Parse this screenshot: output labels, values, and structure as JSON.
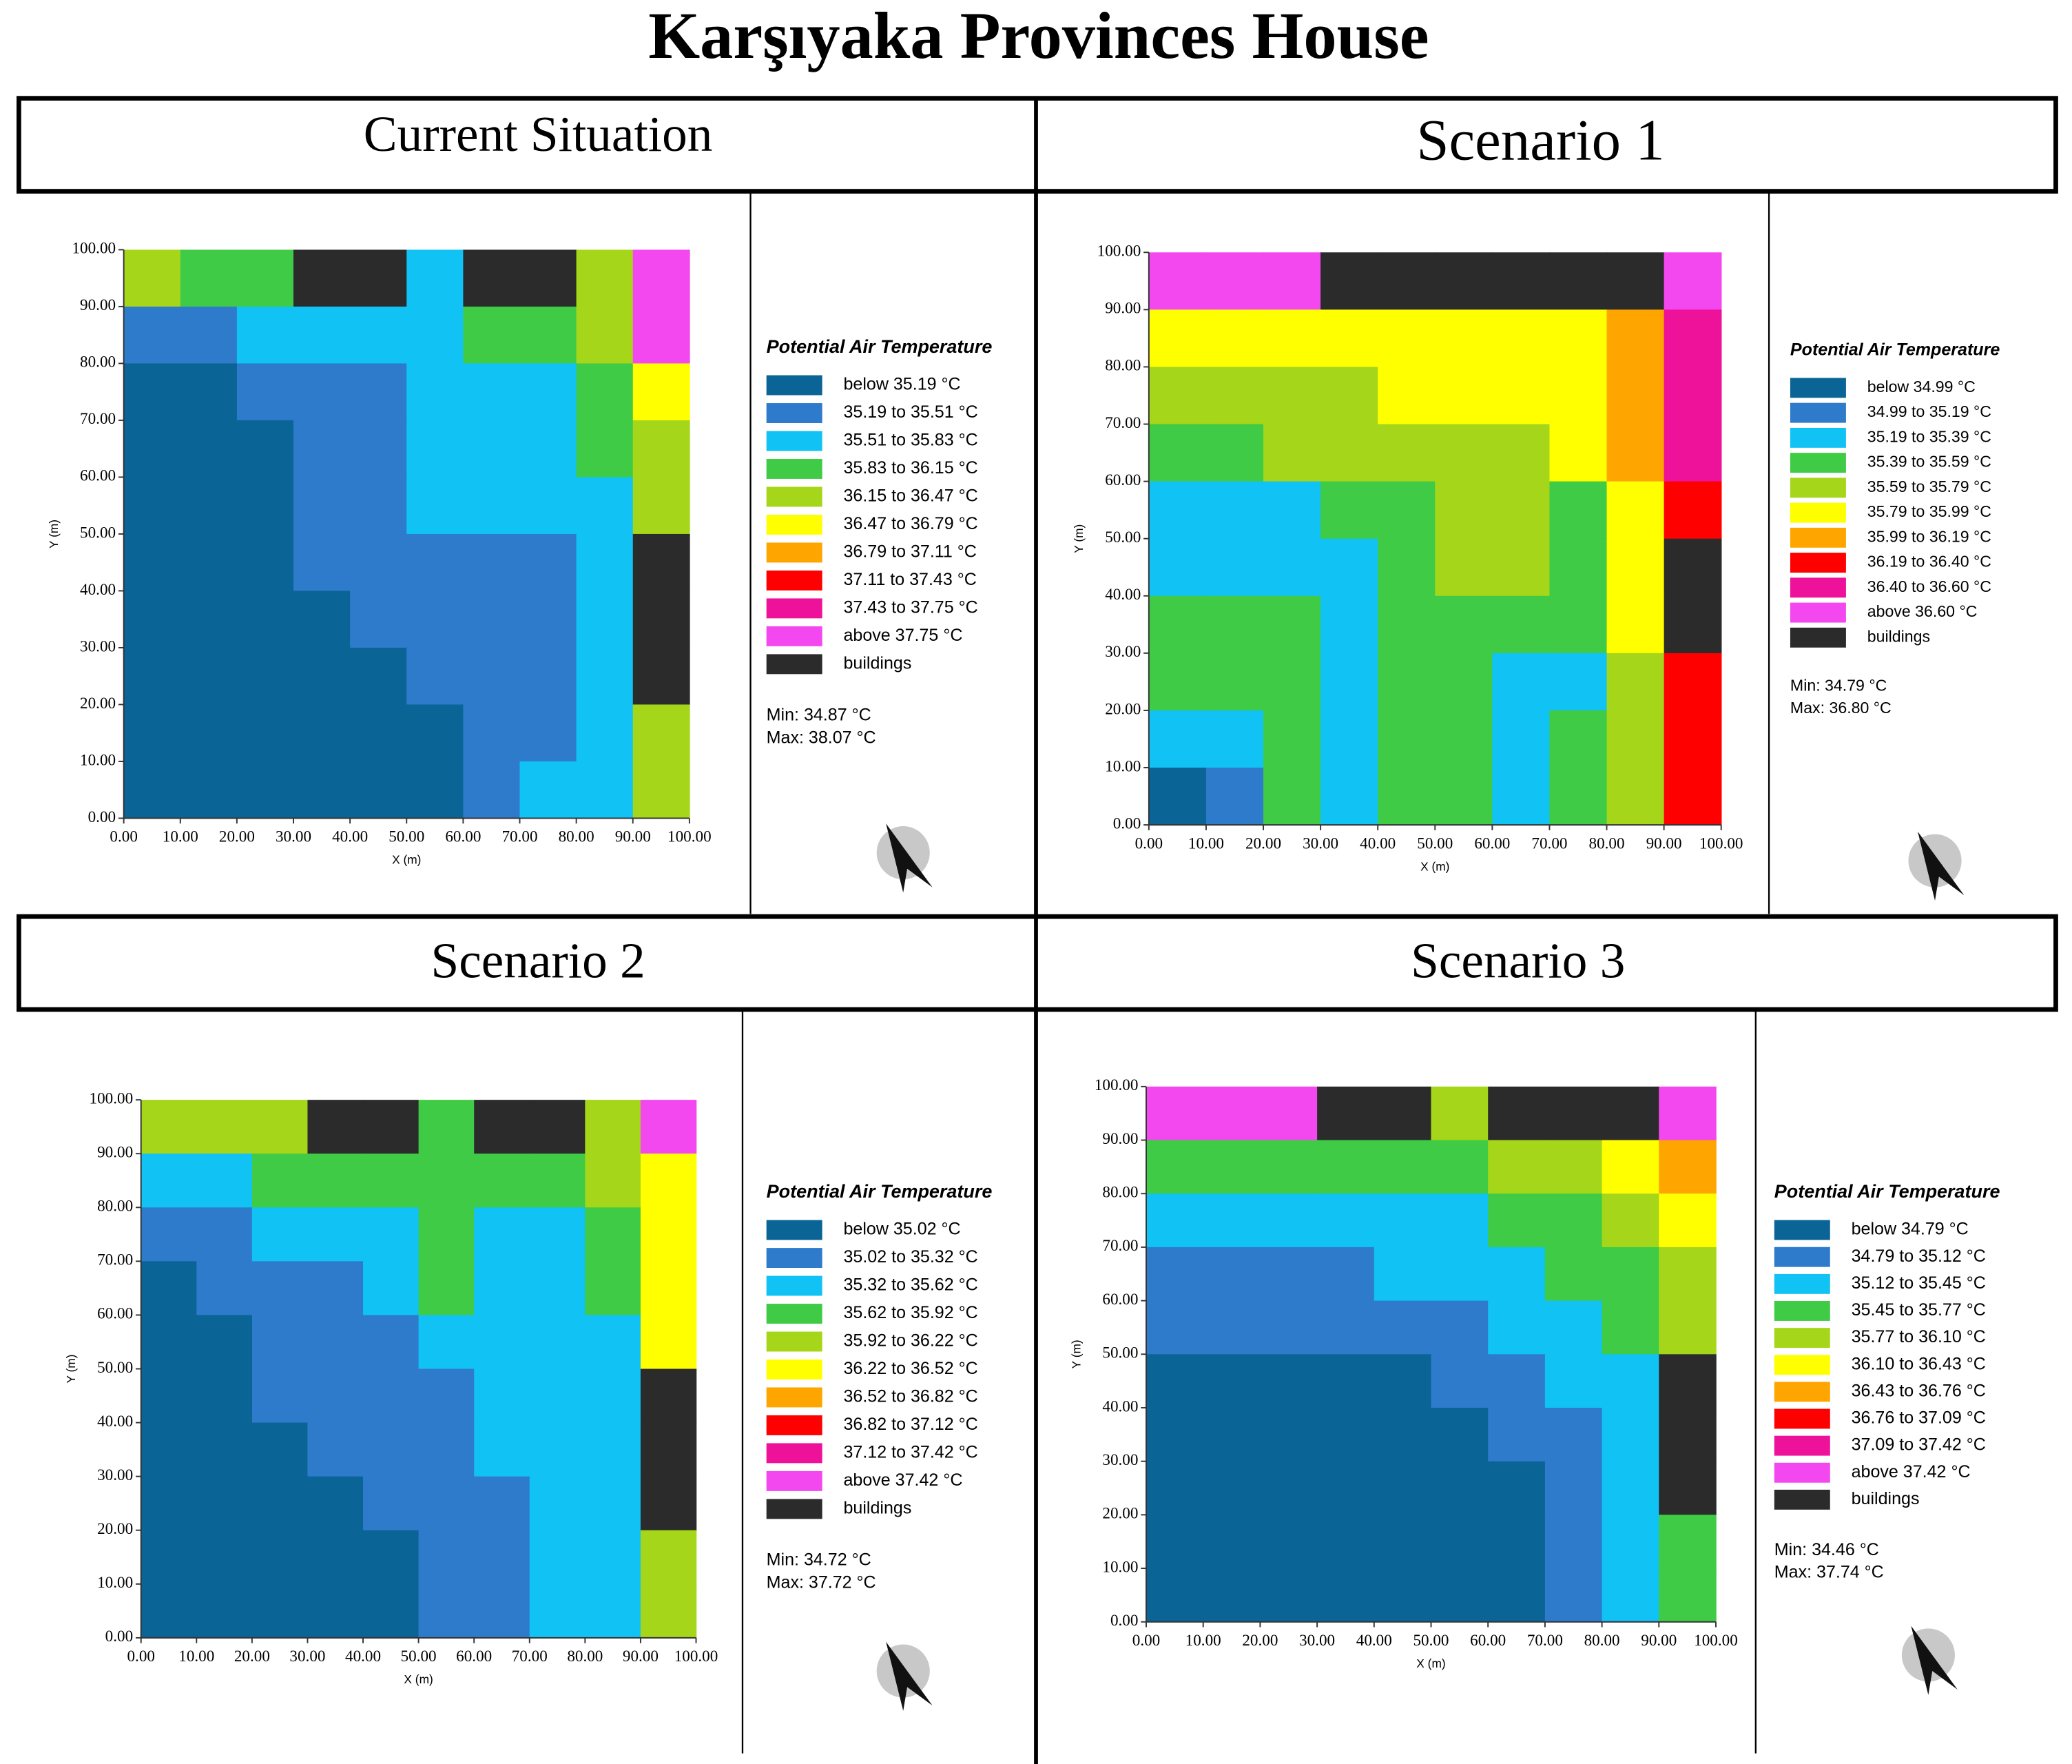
{
  "title": "Karşıyaka Provinces House",
  "chart_data": [
    {
      "type": "heatmap",
      "title": "Current Situation",
      "legend_title": "Potential Air Temperature",
      "xlabel": "X (m)",
      "ylabel": "Y (m)",
      "xlim": [
        0,
        100
      ],
      "ylim": [
        0,
        100
      ],
      "xticks": [
        {
          "value": 0,
          "label": "0.00"
        },
        {
          "value": 10,
          "label": "10.00"
        },
        {
          "value": 20,
          "label": "20.00"
        },
        {
          "value": 30,
          "label": "30.00"
        },
        {
          "value": 40,
          "label": "40.00"
        },
        {
          "value": 50,
          "label": "50.00"
        },
        {
          "value": 60,
          "label": "60.00"
        },
        {
          "value": 70,
          "label": "70.00"
        },
        {
          "value": 80,
          "label": "80.00"
        },
        {
          "value": 90,
          "label": "90.00"
        },
        {
          "value": 100,
          "label": "100.00"
        }
      ],
      "yticks": [
        {
          "value": 0,
          "label": "0.00"
        },
        {
          "value": 10,
          "label": "10.00"
        },
        {
          "value": 20,
          "label": "20.00"
        },
        {
          "value": 30,
          "label": "30.00"
        },
        {
          "value": 40,
          "label": "40.00"
        },
        {
          "value": 50,
          "label": "50.00"
        },
        {
          "value": 60,
          "label": "60.00"
        },
        {
          "value": 70,
          "label": "70.00"
        },
        {
          "value": 80,
          "label": "80.00"
        },
        {
          "value": 90,
          "label": "90.00"
        },
        {
          "value": 100,
          "label": "100.00"
        }
      ],
      "legend": [
        {
          "label": "below 35.19 °C",
          "color": "#0a6496"
        },
        {
          "label": "35.19 to 35.51 °C",
          "color": "#2e7bcc"
        },
        {
          "label": "35.51 to 35.83 °C",
          "color": "#11c2f5"
        },
        {
          "label": "35.83 to 36.15 °C",
          "color": "#3fcb45"
        },
        {
          "label": "36.15 to 36.47 °C",
          "color": "#a6d61a"
        },
        {
          "label": "36.47 to 36.79 °C",
          "color": "#ffff00"
        },
        {
          "label": "36.79 to 37.11 °C",
          "color": "#ffa500"
        },
        {
          "label": "37.11 to 37.43 °C",
          "color": "#ff0000"
        },
        {
          "label": "37.43 to 37.75 °C",
          "color": "#ee1199"
        },
        {
          "label": "above 37.75 °C",
          "color": "#f347f0"
        },
        {
          "label": "buildings",
          "color": "#2b2b2b"
        }
      ],
      "min_label": "Min: 34.87 °C",
      "max_label": "Max: 38.07 °C",
      "values": [
        [
          4,
          3,
          3,
          10,
          10,
          2,
          10,
          10,
          4,
          9
        ],
        [
          1,
          1,
          2,
          2,
          2,
          2,
          3,
          3,
          4,
          9
        ],
        [
          0,
          0,
          1,
          1,
          1,
          2,
          2,
          2,
          3,
          5
        ],
        [
          0,
          0,
          0,
          1,
          1,
          2,
          2,
          2,
          3,
          4
        ],
        [
          0,
          0,
          0,
          1,
          1,
          2,
          2,
          2,
          2,
          4
        ],
        [
          0,
          0,
          0,
          1,
          1,
          1,
          1,
          1,
          2,
          10
        ],
        [
          0,
          0,
          0,
          0,
          1,
          1,
          1,
          1,
          2,
          10
        ],
        [
          0,
          0,
          0,
          0,
          0,
          1,
          1,
          1,
          2,
          10
        ],
        [
          0,
          0,
          0,
          0,
          0,
          0,
          1,
          1,
          2,
          4
        ],
        [
          0,
          0,
          0,
          0,
          0,
          0,
          1,
          2,
          2,
          4
        ]
      ]
    },
    {
      "type": "heatmap",
      "title": "Scenario 1",
      "legend_title": "Potential Air Temperature",
      "xlabel": "X (m)",
      "ylabel": "Y (m)",
      "xlim": [
        0,
        100
      ],
      "ylim": [
        0,
        100
      ],
      "xticks": [
        {
          "value": 0,
          "label": "0.00"
        },
        {
          "value": 10,
          "label": "10.00"
        },
        {
          "value": 20,
          "label": "20.00"
        },
        {
          "value": 30,
          "label": "30.00"
        },
        {
          "value": 40,
          "label": "40.00"
        },
        {
          "value": 50,
          "label": "50.00"
        },
        {
          "value": 60,
          "label": "60.00"
        },
        {
          "value": 70,
          "label": "70.00"
        },
        {
          "value": 80,
          "label": "80.00"
        },
        {
          "value": 90,
          "label": "90.00"
        },
        {
          "value": 100,
          "label": "100.00"
        }
      ],
      "yticks": [
        {
          "value": 0,
          "label": "0.00"
        },
        {
          "value": 10,
          "label": "10.00"
        },
        {
          "value": 20,
          "label": "20.00"
        },
        {
          "value": 30,
          "label": "30.00"
        },
        {
          "value": 40,
          "label": "40.00"
        },
        {
          "value": 50,
          "label": "50.00"
        },
        {
          "value": 60,
          "label": "60.00"
        },
        {
          "value": 70,
          "label": "70.00"
        },
        {
          "value": 80,
          "label": "80.00"
        },
        {
          "value": 90,
          "label": "90.00"
        },
        {
          "value": 100,
          "label": "100.00"
        }
      ],
      "legend": [
        {
          "label": "below 34.99 °C",
          "color": "#0a6496"
        },
        {
          "label": "34.99 to 35.19 °C",
          "color": "#2e7bcc"
        },
        {
          "label": "35.19 to 35.39 °C",
          "color": "#11c2f5"
        },
        {
          "label": "35.39 to 35.59 °C",
          "color": "#3fcb45"
        },
        {
          "label": "35.59 to 35.79 °C",
          "color": "#a6d61a"
        },
        {
          "label": "35.79 to 35.99 °C",
          "color": "#ffff00"
        },
        {
          "label": "35.99 to 36.19 °C",
          "color": "#ffa500"
        },
        {
          "label": "36.19 to 36.40 °C",
          "color": "#ff0000"
        },
        {
          "label": "36.40 to 36.60 °C",
          "color": "#ee1199"
        },
        {
          "label": "above 36.60 °C",
          "color": "#f347f0"
        },
        {
          "label": "buildings",
          "color": "#2b2b2b"
        }
      ],
      "min_label": "Min: 34.79 °C",
      "max_label": "Max: 36.80 °C",
      "values": [
        [
          9,
          9,
          9,
          10,
          10,
          10,
          10,
          10,
          10,
          9
        ],
        [
          5,
          5,
          5,
          5,
          5,
          5,
          5,
          5,
          6,
          8
        ],
        [
          4,
          4,
          4,
          4,
          5,
          5,
          5,
          5,
          6,
          8
        ],
        [
          3,
          3,
          4,
          4,
          4,
          4,
          4,
          5,
          6,
          8
        ],
        [
          2,
          2,
          2,
          3,
          3,
          4,
          4,
          3,
          5,
          7
        ],
        [
          2,
          2,
          2,
          2,
          3,
          4,
          4,
          3,
          5,
          10
        ],
        [
          3,
          3,
          3,
          2,
          3,
          3,
          3,
          3,
          5,
          10
        ],
        [
          3,
          3,
          3,
          2,
          3,
          3,
          2,
          2,
          4,
          7
        ],
        [
          2,
          2,
          3,
          2,
          3,
          3,
          2,
          3,
          4,
          7
        ],
        [
          0,
          1,
          3,
          2,
          3,
          3,
          2,
          3,
          4,
          7
        ]
      ]
    },
    {
      "type": "heatmap",
      "title": "Scenario 2",
      "legend_title": "Potential Air Temperature",
      "xlabel": "X (m)",
      "ylabel": "Y (m)",
      "xlim": [
        0,
        100
      ],
      "ylim": [
        0,
        100
      ],
      "xticks": [
        {
          "value": 0,
          "label": "0.00"
        },
        {
          "value": 10,
          "label": "10.00"
        },
        {
          "value": 20,
          "label": "20.00"
        },
        {
          "value": 30,
          "label": "30.00"
        },
        {
          "value": 40,
          "label": "40.00"
        },
        {
          "value": 50,
          "label": "50.00"
        },
        {
          "value": 60,
          "label": "60.00"
        },
        {
          "value": 70,
          "label": "70.00"
        },
        {
          "value": 80,
          "label": "80.00"
        },
        {
          "value": 90,
          "label": "90.00"
        },
        {
          "value": 100,
          "label": "100.00"
        }
      ],
      "yticks": [
        {
          "value": 0,
          "label": "0.00"
        },
        {
          "value": 10,
          "label": "10.00"
        },
        {
          "value": 20,
          "label": "20.00"
        },
        {
          "value": 30,
          "label": "30.00"
        },
        {
          "value": 40,
          "label": "40.00"
        },
        {
          "value": 50,
          "label": "50.00"
        },
        {
          "value": 60,
          "label": "60.00"
        },
        {
          "value": 70,
          "label": "70.00"
        },
        {
          "value": 80,
          "label": "80.00"
        },
        {
          "value": 90,
          "label": "90.00"
        },
        {
          "value": 100,
          "label": "100.00"
        }
      ],
      "legend": [
        {
          "label": "below 35.02 °C",
          "color": "#0a6496"
        },
        {
          "label": "35.02 to 35.32 °C",
          "color": "#2e7bcc"
        },
        {
          "label": "35.32 to 35.62 °C",
          "color": "#11c2f5"
        },
        {
          "label": "35.62 to 35.92 °C",
          "color": "#3fcb45"
        },
        {
          "label": "35.92 to 36.22 °C",
          "color": "#a6d61a"
        },
        {
          "label": "36.22 to 36.52 °C",
          "color": "#ffff00"
        },
        {
          "label": "36.52 to 36.82 °C",
          "color": "#ffa500"
        },
        {
          "label": "36.82 to 37.12 °C",
          "color": "#ff0000"
        },
        {
          "label": "37.12 to 37.42 °C",
          "color": "#ee1199"
        },
        {
          "label": "above 37.42 °C",
          "color": "#f347f0"
        },
        {
          "label": "buildings",
          "color": "#2b2b2b"
        }
      ],
      "min_label": "Min: 34.72 °C",
      "max_label": "Max: 37.72 °C",
      "values": [
        [
          4,
          4,
          4,
          10,
          10,
          3,
          10,
          10,
          4,
          9
        ],
        [
          2,
          2,
          3,
          3,
          3,
          3,
          3,
          3,
          4,
          5
        ],
        [
          1,
          1,
          2,
          2,
          2,
          3,
          2,
          2,
          3,
          5
        ],
        [
          0,
          1,
          1,
          1,
          2,
          3,
          2,
          2,
          3,
          5
        ],
        [
          0,
          0,
          1,
          1,
          1,
          2,
          2,
          2,
          2,
          5
        ],
        [
          0,
          0,
          1,
          1,
          1,
          1,
          2,
          2,
          2,
          10
        ],
        [
          0,
          0,
          0,
          1,
          1,
          1,
          2,
          2,
          2,
          10
        ],
        [
          0,
          0,
          0,
          0,
          1,
          1,
          1,
          2,
          2,
          10
        ],
        [
          0,
          0,
          0,
          0,
          0,
          1,
          1,
          2,
          2,
          4
        ],
        [
          0,
          0,
          0,
          0,
          0,
          1,
          1,
          2,
          2,
          4
        ]
      ]
    },
    {
      "type": "heatmap",
      "title": "Scenario 3",
      "legend_title": "Potential Air Temperature",
      "xlabel": "X (m)",
      "ylabel": "Y (m)",
      "xlim": [
        0,
        100
      ],
      "ylim": [
        0,
        100
      ],
      "xticks": [
        {
          "value": 0,
          "label": "0.00"
        },
        {
          "value": 10,
          "label": "10.00"
        },
        {
          "value": 20,
          "label": "20.00"
        },
        {
          "value": 30,
          "label": "30.00"
        },
        {
          "value": 40,
          "label": "40.00"
        },
        {
          "value": 50,
          "label": "50.00"
        },
        {
          "value": 60,
          "label": "60.00"
        },
        {
          "value": 70,
          "label": "70.00"
        },
        {
          "value": 80,
          "label": "80.00"
        },
        {
          "value": 90,
          "label": "90.00"
        },
        {
          "value": 100,
          "label": "100.00"
        }
      ],
      "yticks": [
        {
          "value": 0,
          "label": "0.00"
        },
        {
          "value": 10,
          "label": "10.00"
        },
        {
          "value": 20,
          "label": "20.00"
        },
        {
          "value": 30,
          "label": "30.00"
        },
        {
          "value": 40,
          "label": "40.00"
        },
        {
          "value": 50,
          "label": "50.00"
        },
        {
          "value": 60,
          "label": "60.00"
        },
        {
          "value": 70,
          "label": "70.00"
        },
        {
          "value": 80,
          "label": "80.00"
        },
        {
          "value": 90,
          "label": "90.00"
        },
        {
          "value": 100,
          "label": "100.00"
        }
      ],
      "legend": [
        {
          "label": "below 34.79 °C",
          "color": "#0a6496"
        },
        {
          "label": "34.79 to 35.12 °C",
          "color": "#2e7bcc"
        },
        {
          "label": "35.12 to 35.45 °C",
          "color": "#11c2f5"
        },
        {
          "label": "35.45 to 35.77 °C",
          "color": "#3fcb45"
        },
        {
          "label": "35.77 to 36.10 °C",
          "color": "#a6d61a"
        },
        {
          "label": "36.10 to 36.43 °C",
          "color": "#ffff00"
        },
        {
          "label": "36.43 to 36.76 °C",
          "color": "#ffa500"
        },
        {
          "label": "36.76 to 37.09 °C",
          "color": "#ff0000"
        },
        {
          "label": "37.09 to 37.42 °C",
          "color": "#ee1199"
        },
        {
          "label": "above 37.42 °C",
          "color": "#f347f0"
        },
        {
          "label": "buildings",
          "color": "#2b2b2b"
        }
      ],
      "min_label": "Min: 34.46 °C",
      "max_label": "Max: 37.74 °C",
      "values": [
        [
          9,
          9,
          9,
          10,
          10,
          4,
          10,
          10,
          10,
          9
        ],
        [
          3,
          3,
          3,
          3,
          3,
          3,
          4,
          4,
          5,
          6
        ],
        [
          2,
          2,
          2,
          2,
          2,
          2,
          3,
          3,
          4,
          5
        ],
        [
          1,
          1,
          1,
          1,
          2,
          2,
          2,
          3,
          3,
          4
        ],
        [
          1,
          1,
          1,
          1,
          1,
          1,
          2,
          2,
          3,
          4
        ],
        [
          0,
          0,
          0,
          0,
          0,
          1,
          1,
          2,
          2,
          10
        ],
        [
          0,
          0,
          0,
          0,
          0,
          0,
          1,
          1,
          2,
          10
        ],
        [
          0,
          0,
          0,
          0,
          0,
          0,
          0,
          1,
          2,
          10
        ],
        [
          0,
          0,
          0,
          0,
          0,
          0,
          0,
          1,
          2,
          3
        ],
        [
          0,
          0,
          0,
          0,
          0,
          0,
          0,
          1,
          2,
          3
        ]
      ]
    }
  ]
}
